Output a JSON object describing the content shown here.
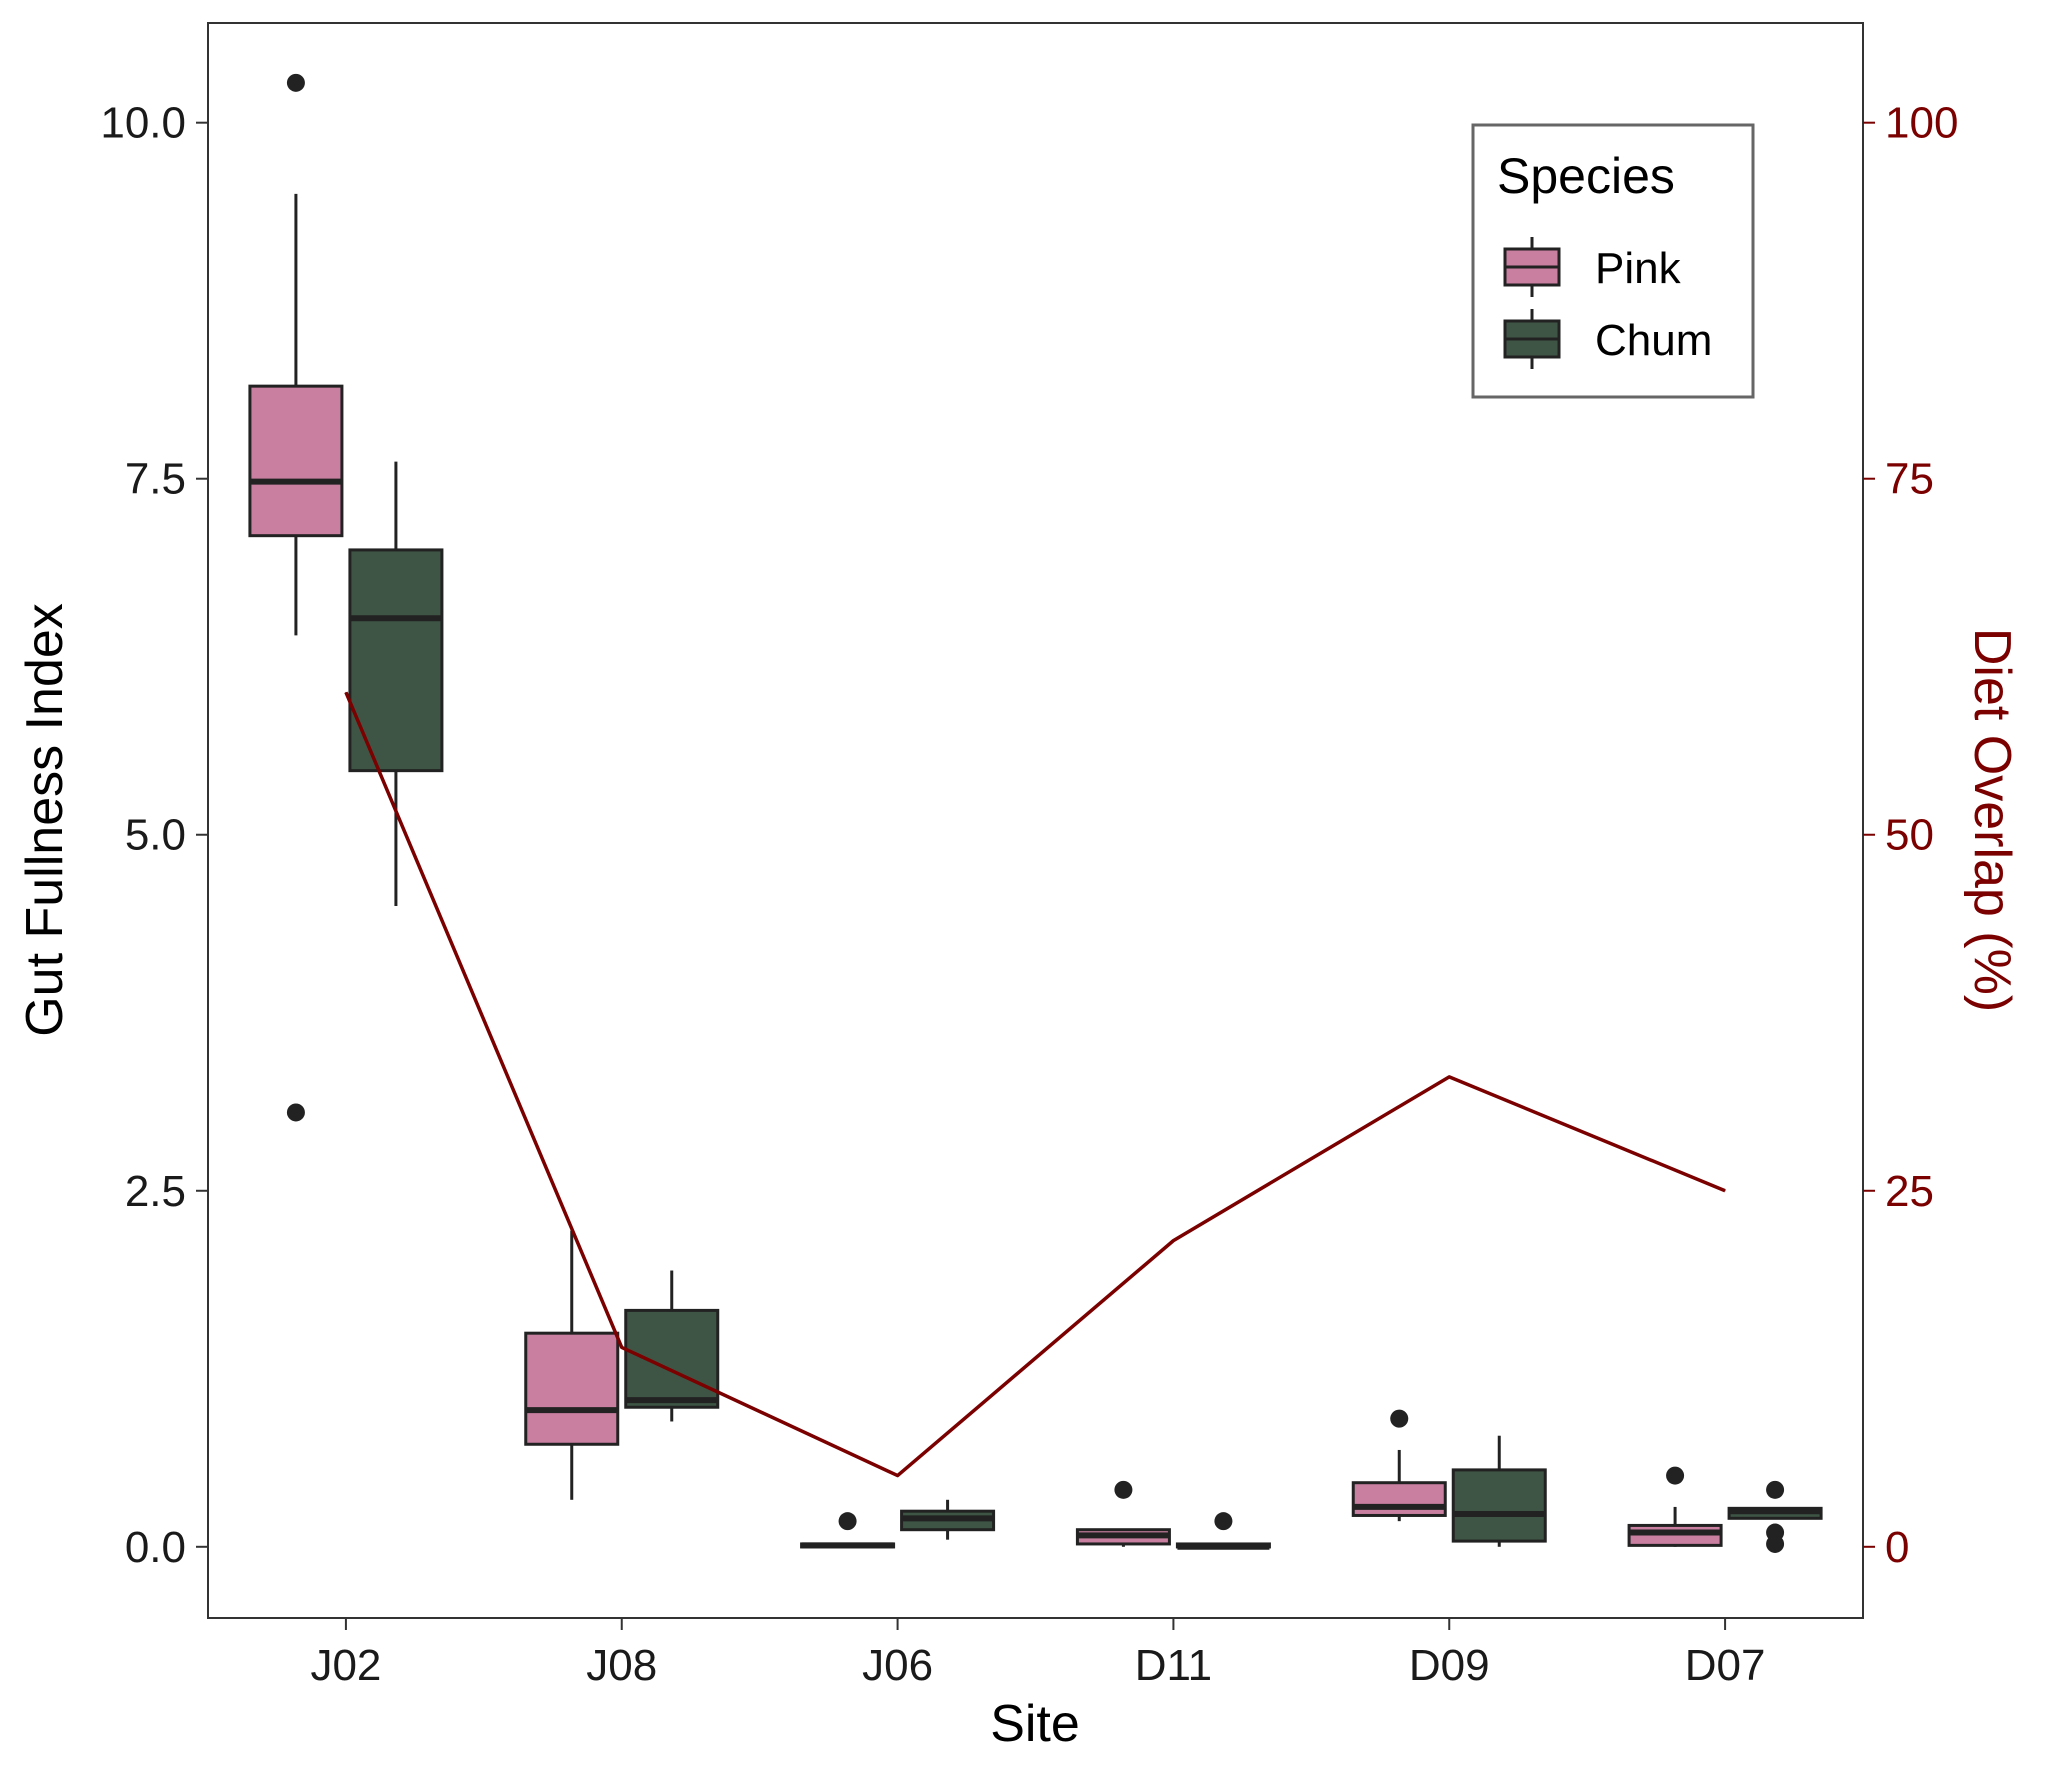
{
  "chart_data": {
    "type": "box",
    "xlabel": "Site",
    "ylabel": "Gut Fullness Index",
    "ylabel_right": "Diet Overlap (%)",
    "categories": [
      "J02",
      "J08",
      "J06",
      "D11",
      "D09",
      "D07"
    ],
    "ylim": [
      -0.5,
      10.7
    ],
    "yticks": [
      0.0,
      2.5,
      5.0,
      7.5,
      10.0
    ],
    "ytick_labels": [
      "0.0",
      "2.5",
      "5.0",
      "7.5",
      "10.0"
    ],
    "ylim_right": [
      -5,
      107
    ],
    "yticks_right": [
      0,
      25,
      50,
      75,
      100
    ],
    "ytick_labels_right": [
      "0",
      "25",
      "50",
      "75",
      "100"
    ],
    "grid": false,
    "legend": {
      "title": "Species",
      "position": "top-right",
      "entries": [
        {
          "name": "Pink",
          "color": "#c97fa0"
        },
        {
          "name": "Chum",
          "color": "#3e5545"
        }
      ]
    },
    "series": [
      {
        "name": "Pink",
        "color": "#c97fa0",
        "boxes": [
          {
            "category": "J02",
            "whisker_low": 6.4,
            "q1": 7.1,
            "median": 7.48,
            "q3": 8.15,
            "whisker_high": 9.5,
            "outliers": [
              10.28,
              3.05
            ]
          },
          {
            "category": "J08",
            "whisker_low": 0.33,
            "q1": 0.72,
            "median": 0.96,
            "q3": 1.5,
            "whisker_high": 2.22,
            "outliers": []
          },
          {
            "category": "J06",
            "whisker_low": 0.0,
            "q1": 0.0,
            "median": 0.01,
            "q3": 0.02,
            "whisker_high": 0.02,
            "outliers": [
              0.18
            ]
          },
          {
            "category": "D11",
            "whisker_low": 0.0,
            "q1": 0.02,
            "median": 0.08,
            "q3": 0.12,
            "whisker_high": 0.12,
            "outliers": [
              0.4
            ]
          },
          {
            "category": "D09",
            "whisker_low": 0.18,
            "q1": 0.22,
            "median": 0.28,
            "q3": 0.45,
            "whisker_high": 0.68,
            "outliers": [
              0.9
            ]
          },
          {
            "category": "D07",
            "whisker_low": 0.0,
            "q1": 0.01,
            "median": 0.1,
            "q3": 0.15,
            "whisker_high": 0.28,
            "outliers": [
              0.5
            ]
          }
        ]
      },
      {
        "name": "Chum",
        "color": "#3e5545",
        "boxes": [
          {
            "category": "J02",
            "whisker_low": 4.5,
            "q1": 5.45,
            "median": 6.52,
            "q3": 7.0,
            "whisker_high": 7.62,
            "outliers": []
          },
          {
            "category": "J08",
            "whisker_low": 0.88,
            "q1": 0.98,
            "median": 1.03,
            "q3": 1.66,
            "whisker_high": 1.94,
            "outliers": []
          },
          {
            "category": "J06",
            "whisker_low": 0.05,
            "q1": 0.12,
            "median": 0.2,
            "q3": 0.25,
            "whisker_high": 0.33,
            "outliers": []
          },
          {
            "category": "D11",
            "whisker_low": 0.0,
            "q1": 0.0,
            "median": 0.0,
            "q3": 0.02,
            "whisker_high": 0.02,
            "outliers": [
              0.18
            ]
          },
          {
            "category": "D09",
            "whisker_low": 0.0,
            "q1": 0.04,
            "median": 0.23,
            "q3": 0.54,
            "whisker_high": 0.78,
            "outliers": []
          },
          {
            "category": "D07",
            "whisker_low": 0.2,
            "q1": 0.2,
            "median": 0.25,
            "q3": 0.27,
            "whisker_high": 0.27,
            "outliers": [
              0.4,
              0.1,
              0.02
            ]
          }
        ]
      },
      {
        "name": "",
        "type": "line",
        "axis": "right",
        "color": "#7b0000",
        "x": [
          "J02",
          "J08",
          "J06",
          "D11",
          "D09",
          "D07"
        ],
        "values": [
          60,
          14,
          5,
          21.5,
          33,
          25
        ]
      }
    ]
  }
}
